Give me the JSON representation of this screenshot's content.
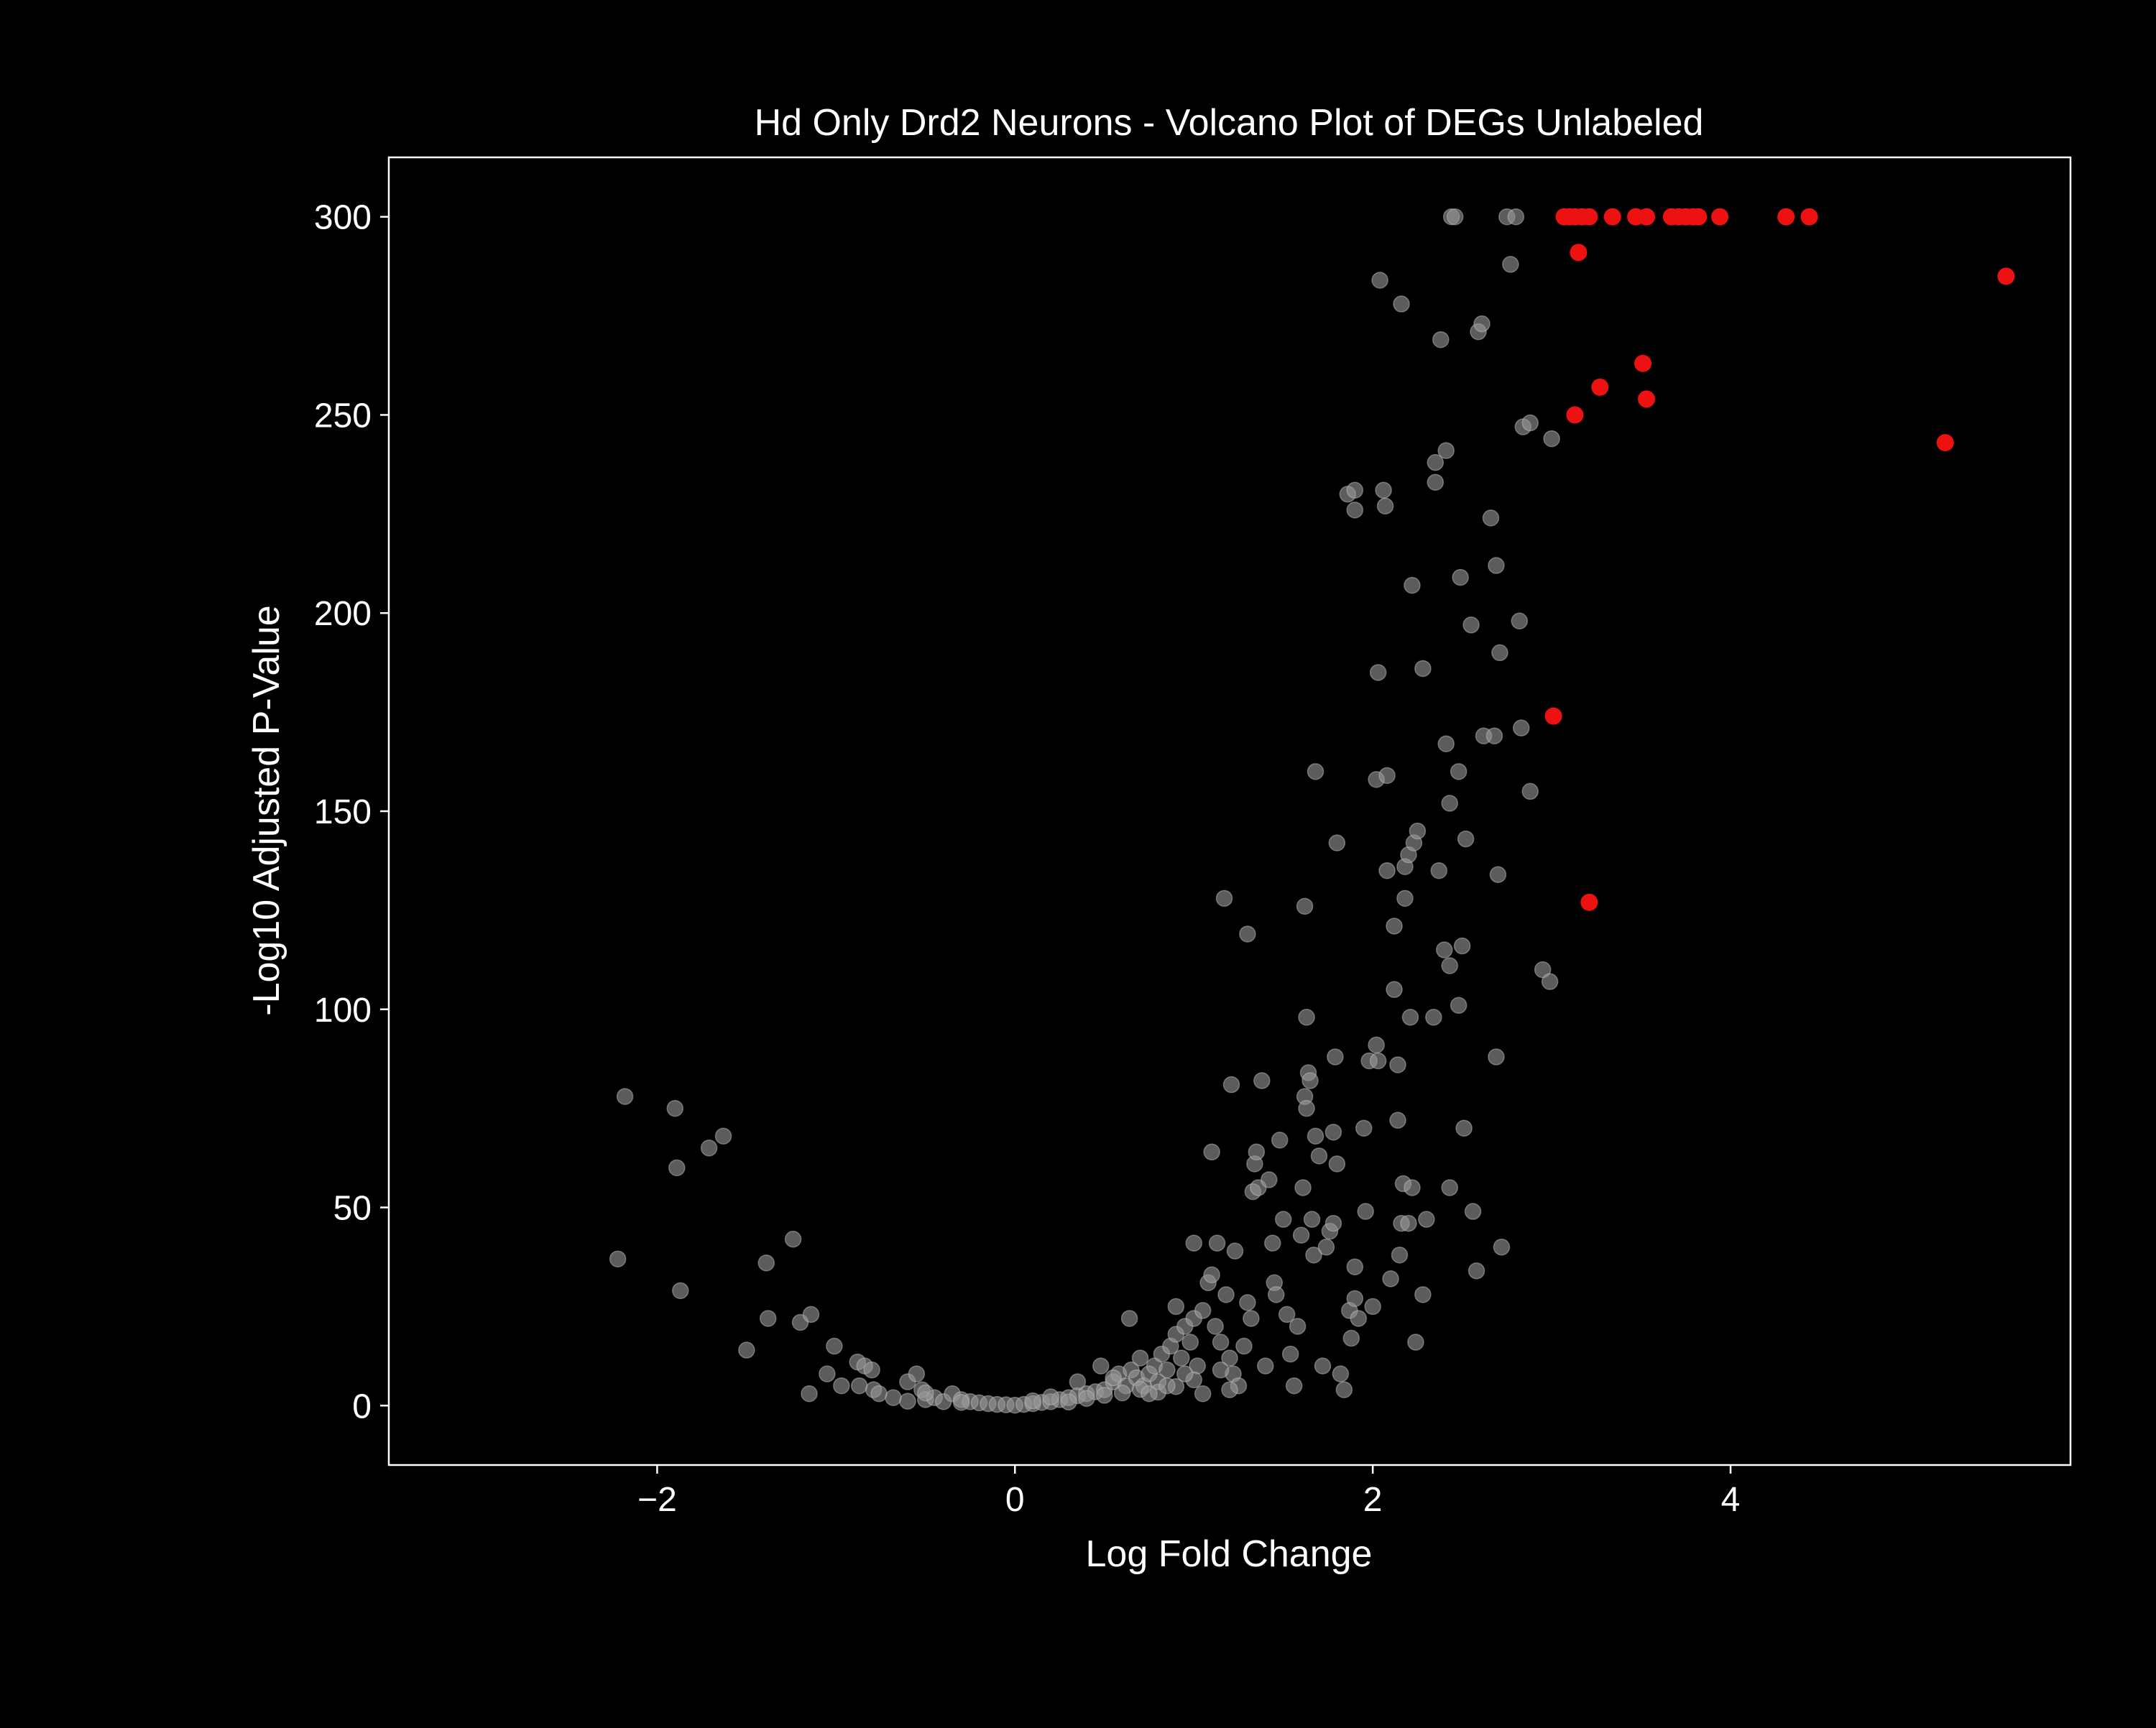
{
  "colors": {
    "background": "#000000",
    "foreground": "#ffffff",
    "nonsignificant": "#9a9a9a",
    "significant": "#ee1111"
  },
  "chart_data": {
    "type": "scatter",
    "title": "Hd Only Drd2 Neurons - Volcano Plot of DEGs Unlabeled",
    "xlabel": "Log Fold Change",
    "ylabel": "-Log10 Adjusted P-Value",
    "xlim": [
      -3.5,
      5.9
    ],
    "ylim": [
      -15,
      315
    ],
    "xticks": [
      -2,
      0,
      2,
      4
    ],
    "xtick_labels": [
      "−2",
      "0",
      "2",
      "4"
    ],
    "yticks": [
      0,
      50,
      100,
      150,
      200,
      250,
      300
    ],
    "ytick_labels": [
      "0",
      "50",
      "100",
      "150",
      "200",
      "250",
      "300"
    ],
    "grid": false,
    "reference_line": {
      "y": 2,
      "x_range": [
        -0.65,
        1.1
      ],
      "style": "dashed"
    },
    "series": [
      {
        "color": "nonsignificant",
        "points": [
          [
            -2.18,
            78
          ],
          [
            -2.22,
            37
          ],
          [
            -1.9,
            75
          ],
          [
            -1.89,
            60
          ],
          [
            -1.87,
            29
          ],
          [
            -1.71,
            65
          ],
          [
            -1.63,
            68
          ],
          [
            -1.5,
            14
          ],
          [
            -1.39,
            36
          ],
          [
            -1.38,
            22
          ],
          [
            -1.24,
            42
          ],
          [
            -1.2,
            21
          ],
          [
            -1.14,
            23
          ],
          [
            -1.15,
            3
          ],
          [
            -1.01,
            15
          ],
          [
            -1.05,
            8
          ],
          [
            -0.97,
            5
          ],
          [
            -0.88,
            11
          ],
          [
            -0.84,
            10
          ],
          [
            -0.8,
            9
          ],
          [
            -0.87,
            5
          ],
          [
            -0.79,
            4
          ],
          [
            -0.76,
            3
          ],
          [
            -0.68,
            2
          ],
          [
            -0.6,
            6
          ],
          [
            -0.55,
            8
          ],
          [
            -0.52,
            4
          ],
          [
            -0.5,
            1.5
          ],
          [
            -0.45,
            2
          ],
          [
            -0.4,
            1
          ],
          [
            -0.35,
            3
          ],
          [
            -0.3,
            1.5
          ],
          [
            -0.25,
            1
          ],
          [
            -0.2,
            0.7
          ],
          [
            -0.15,
            0.5
          ],
          [
            -0.1,
            0.3
          ],
          [
            -0.05,
            0.2
          ],
          [
            0.0,
            0.1
          ],
          [
            0.05,
            0.3
          ],
          [
            0.1,
            0.5
          ],
          [
            0.15,
            0.8
          ],
          [
            0.2,
            1
          ],
          [
            0.25,
            1.5
          ],
          [
            0.3,
            2
          ],
          [
            0.35,
            2.5
          ],
          [
            0.4,
            3
          ],
          [
            0.45,
            3.5
          ],
          [
            0.5,
            4
          ],
          [
            0.48,
            10
          ],
          [
            0.55,
            6
          ],
          [
            0.58,
            8
          ],
          [
            0.62,
            5
          ],
          [
            0.65,
            9
          ],
          [
            0.68,
            7
          ],
          [
            0.7,
            12
          ],
          [
            0.72,
            5
          ],
          [
            0.75,
            8
          ],
          [
            0.64,
            22
          ],
          [
            0.78,
            10
          ],
          [
            0.8,
            6
          ],
          [
            0.82,
            13
          ],
          [
            0.85,
            9
          ],
          [
            0.87,
            15
          ],
          [
            0.9,
            18
          ],
          [
            0.9,
            25
          ],
          [
            0.93,
            12
          ],
          [
            0.95,
            20
          ],
          [
            0.98,
            16
          ],
          [
            1.0,
            22
          ],
          [
            1.02,
            10
          ],
          [
            1.05,
            24
          ],
          [
            1.08,
            31
          ],
          [
            1.1,
            33
          ],
          [
            1.12,
            20
          ],
          [
            1.15,
            16
          ],
          [
            1.18,
            28
          ],
          [
            1.2,
            12
          ],
          [
            1.22,
            8
          ],
          [
            1.25,
            5
          ],
          [
            1.0,
            41
          ],
          [
            1.13,
            41
          ],
          [
            1.23,
            39
          ],
          [
            1.1,
            64
          ],
          [
            1.17,
            128
          ],
          [
            1.3,
            119
          ],
          [
            1.21,
            81
          ],
          [
            1.28,
            15
          ],
          [
            1.3,
            26
          ],
          [
            1.32,
            22
          ],
          [
            1.33,
            54
          ],
          [
            1.34,
            61
          ],
          [
            1.35,
            64
          ],
          [
            1.36,
            55
          ],
          [
            1.38,
            82
          ],
          [
            1.4,
            10
          ],
          [
            1.42,
            57
          ],
          [
            1.44,
            41
          ],
          [
            1.45,
            31
          ],
          [
            1.46,
            28
          ],
          [
            1.48,
            67
          ],
          [
            1.5,
            47
          ],
          [
            1.52,
            23
          ],
          [
            1.54,
            13
          ],
          [
            1.56,
            5
          ],
          [
            1.58,
            20
          ],
          [
            1.6,
            43
          ],
          [
            1.61,
            55
          ],
          [
            1.62,
            78
          ],
          [
            1.63,
            75
          ],
          [
            1.63,
            98
          ],
          [
            1.62,
            126
          ],
          [
            1.64,
            84
          ],
          [
            1.65,
            82
          ],
          [
            1.66,
            47
          ],
          [
            1.67,
            38
          ],
          [
            1.68,
            68
          ],
          [
            1.68,
            160
          ],
          [
            1.7,
            63
          ],
          [
            1.72,
            10
          ],
          [
            1.74,
            40
          ],
          [
            1.76,
            44
          ],
          [
            1.78,
            46
          ],
          [
            1.78,
            69
          ],
          [
            1.79,
            88
          ],
          [
            1.8,
            61
          ],
          [
            1.8,
            142
          ],
          [
            1.82,
            8
          ],
          [
            1.84,
            4
          ],
          [
            1.86,
            230
          ],
          [
            1.87,
            24
          ],
          [
            1.88,
            17
          ],
          [
            1.9,
            35
          ],
          [
            1.9,
            226
          ],
          [
            1.9,
            27
          ],
          [
            1.9,
            231
          ],
          [
            1.92,
            22
          ],
          [
            1.95,
            70
          ],
          [
            1.96,
            49
          ],
          [
            1.98,
            87
          ],
          [
            2.0,
            25
          ],
          [
            2.02,
            158
          ],
          [
            2.02,
            91
          ],
          [
            2.03,
            87
          ],
          [
            2.03,
            185
          ],
          [
            2.04,
            284
          ],
          [
            2.06,
            231
          ],
          [
            2.07,
            227
          ],
          [
            2.08,
            159
          ],
          [
            2.08,
            135
          ],
          [
            2.1,
            32
          ],
          [
            2.12,
            105
          ],
          [
            2.12,
            121
          ],
          [
            2.14,
            72
          ],
          [
            2.14,
            86
          ],
          [
            2.15,
            38
          ],
          [
            2.16,
            278
          ],
          [
            2.16,
            46
          ],
          [
            2.17,
            56
          ],
          [
            2.18,
            128
          ],
          [
            2.18,
            136
          ],
          [
            2.2,
            139
          ],
          [
            2.2,
            46
          ],
          [
            2.21,
            98
          ],
          [
            2.22,
            207
          ],
          [
            2.22,
            55
          ],
          [
            2.23,
            142
          ],
          [
            2.24,
            16
          ],
          [
            2.25,
            145
          ],
          [
            2.28,
            28
          ],
          [
            2.28,
            186
          ],
          [
            2.3,
            47
          ],
          [
            2.34,
            98
          ],
          [
            2.35,
            233
          ],
          [
            2.35,
            238
          ],
          [
            2.37,
            135
          ],
          [
            2.38,
            269
          ],
          [
            2.4,
            115
          ],
          [
            2.41,
            167
          ],
          [
            2.41,
            241
          ],
          [
            2.43,
            111
          ],
          [
            2.43,
            55
          ],
          [
            2.43,
            152
          ],
          [
            2.44,
            300
          ],
          [
            2.46,
            300
          ],
          [
            2.48,
            160
          ],
          [
            2.48,
            101
          ],
          [
            2.49,
            209
          ],
          [
            2.5,
            116
          ],
          [
            2.51,
            70
          ],
          [
            2.52,
            143
          ],
          [
            2.55,
            197
          ],
          [
            2.56,
            49
          ],
          [
            2.58,
            34
          ],
          [
            2.59,
            271
          ],
          [
            2.61,
            273
          ],
          [
            2.62,
            169
          ],
          [
            2.66,
            224
          ],
          [
            2.68,
            169
          ],
          [
            2.69,
            212
          ],
          [
            2.69,
            88
          ],
          [
            2.7,
            134
          ],
          [
            2.71,
            190
          ],
          [
            2.72,
            40
          ],
          [
            2.75,
            300
          ],
          [
            2.77,
            288
          ],
          [
            2.8,
            300
          ],
          [
            2.82,
            198
          ],
          [
            2.83,
            171
          ],
          [
            2.84,
            247
          ],
          [
            2.88,
            248
          ],
          [
            2.88,
            155
          ],
          [
            2.95,
            110
          ],
          [
            2.99,
            107
          ],
          [
            3.0,
            244
          ],
          [
            0.1,
            1.2
          ],
          [
            0.2,
            2.2
          ],
          [
            0.3,
            0.9
          ],
          [
            0.4,
            1.8
          ],
          [
            0.5,
            2.6
          ],
          [
            0.6,
            3.2
          ],
          [
            0.7,
            4.1
          ],
          [
            0.8,
            3.4
          ],
          [
            0.9,
            4.8
          ],
          [
            1.0,
            6.5
          ],
          [
            1.05,
            3
          ],
          [
            -0.3,
            0.8
          ],
          [
            -0.5,
            3.2
          ],
          [
            -0.6,
            1.1
          ],
          [
            0.35,
            6
          ],
          [
            0.55,
            7
          ],
          [
            0.75,
            3
          ],
          [
            0.85,
            5
          ],
          [
            0.95,
            8
          ],
          [
            1.15,
            9
          ],
          [
            1.2,
            4
          ]
        ]
      },
      {
        "color": "significant",
        "points": [
          [
            3.07,
            300
          ],
          [
            3.1,
            300
          ],
          [
            3.13,
            300
          ],
          [
            3.17,
            300
          ],
          [
            3.21,
            300
          ],
          [
            3.34,
            300
          ],
          [
            3.47,
            300
          ],
          [
            3.53,
            300
          ],
          [
            3.67,
            300
          ],
          [
            3.71,
            300
          ],
          [
            3.75,
            300
          ],
          [
            3.79,
            300
          ],
          [
            3.82,
            300
          ],
          [
            3.94,
            300
          ],
          [
            4.31,
            300
          ],
          [
            4.44,
            300
          ],
          [
            3.15,
            291
          ],
          [
            5.54,
            285
          ],
          [
            3.51,
            263
          ],
          [
            3.27,
            257
          ],
          [
            3.53,
            254
          ],
          [
            3.13,
            250
          ],
          [
            5.2,
            243
          ],
          [
            3.01,
            174
          ],
          [
            3.21,
            127
          ]
        ]
      }
    ]
  }
}
